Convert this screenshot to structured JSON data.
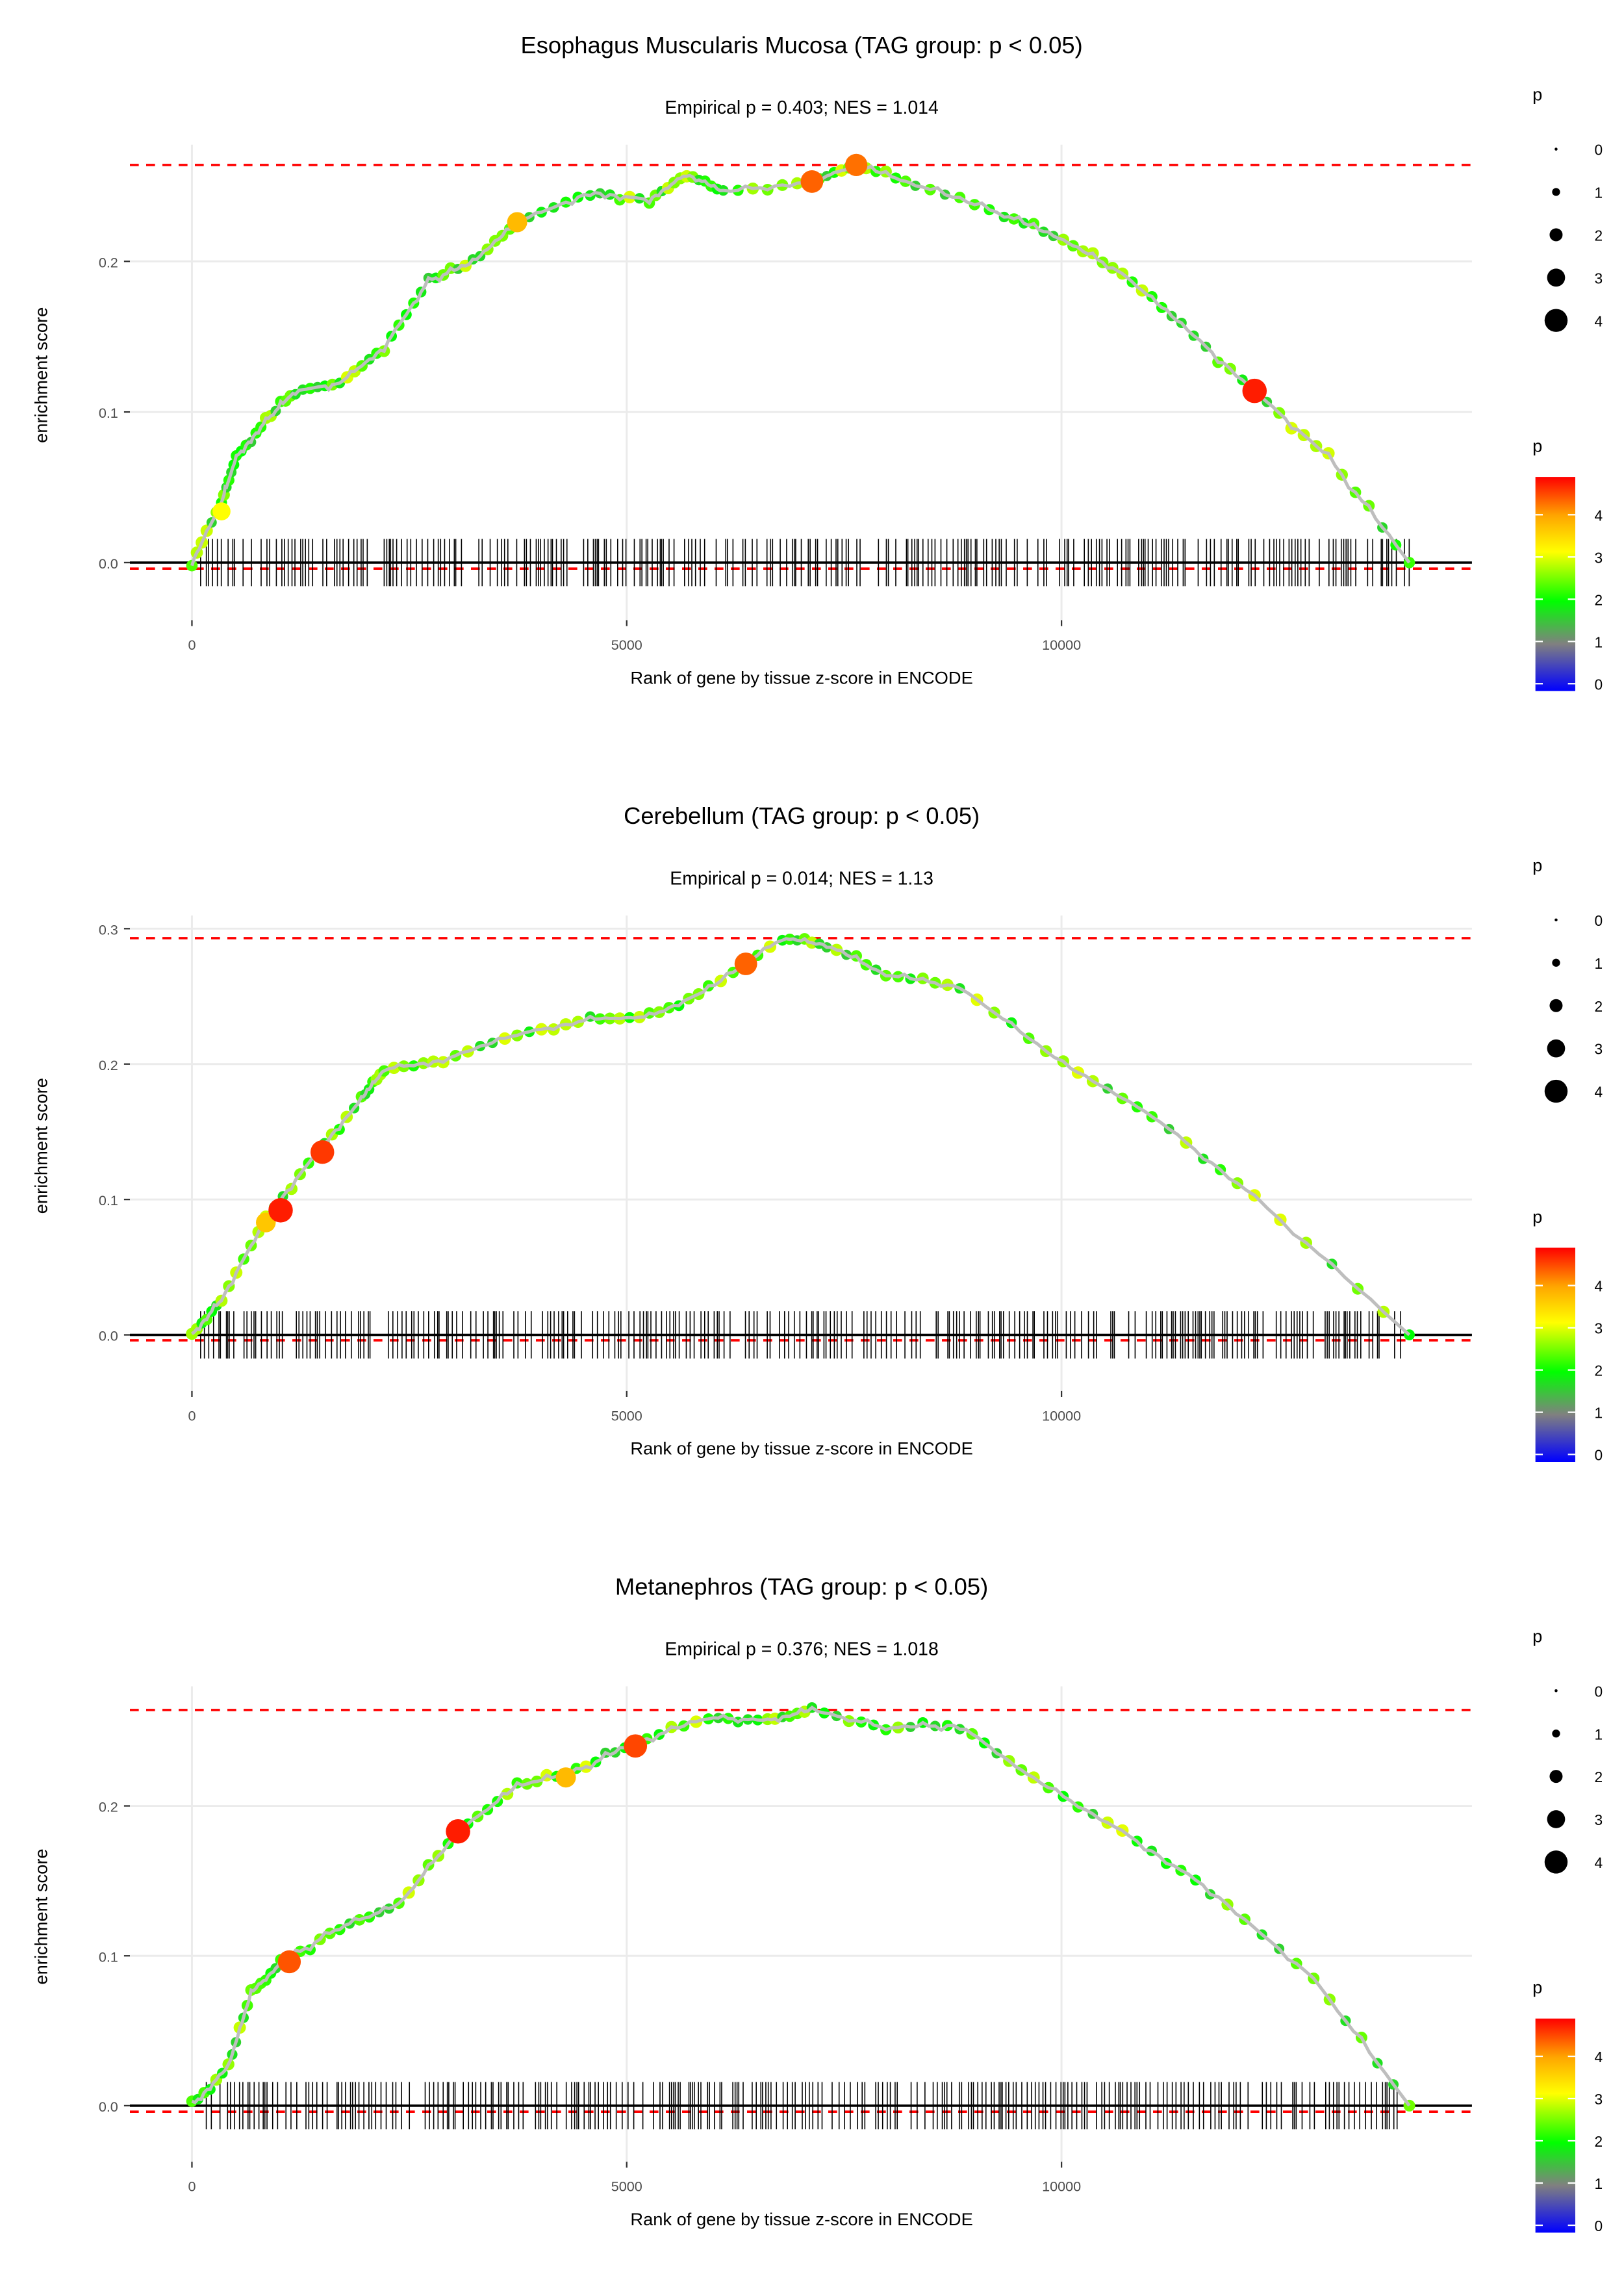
{
  "chart_data": [
    {
      "type": "line",
      "title": "Esophagus Muscularis Mucosa (TAG group: p < 0.05)",
      "subtitle": "Empirical p = 0.403; NES = 1.014",
      "xlabel": "Rank of gene by tissue z-score in ENCODE",
      "ylabel": "enrichment score",
      "xlim": [
        -1000,
        14700
      ],
      "ylim": [
        -0.03,
        0.28
      ],
      "xticks": [
        0,
        5000,
        10000
      ],
      "xtick_labels": [
        "0",
        "5000",
        "10000"
      ],
      "yticks": [
        0,
        0.1,
        0.2
      ],
      "ytick_labels": [
        "0.0",
        "0.1",
        "0.2"
      ],
      "max_es": 0.264,
      "min_es": -0.004,
      "x": [
        0,
        340,
        510,
        850,
        1190,
        1700,
        2210,
        2720,
        3230,
        3740,
        4580,
        5260,
        5690,
        6110,
        7130,
        7640,
        8320,
        9340,
        10020,
        10700,
        11380,
        12220,
        13070,
        14000
      ],
      "y": [
        0,
        0.04,
        0.07,
        0.094,
        0.114,
        0.119,
        0.143,
        0.187,
        0.199,
        0.226,
        0.246,
        0.241,
        0.258,
        0.246,
        0.253,
        0.264,
        0.251,
        0.231,
        0.214,
        0.192,
        0.158,
        0.114,
        0.07,
        0
      ],
      "highlights": [
        {
          "x": 3740,
          "y": 0.226,
          "p": 3.6
        },
        {
          "x": 7130,
          "y": 0.253,
          "p": 4.3
        },
        {
          "x": 7640,
          "y": 0.264,
          "p": 4.2
        },
        {
          "x": 12220,
          "y": 0.114,
          "p": 4.8
        },
        {
          "x": 340,
          "y": 0.034,
          "p": 3
        }
      ]
    },
    {
      "type": "line",
      "title": "Cerebellum (TAG group: p < 0.05)",
      "subtitle": "Empirical p = 0.014; NES = 1.13",
      "xlabel": "Rank of gene by tissue z-score in ENCODE",
      "ylabel": "enrichment score",
      "xlim": [
        -1000,
        14700
      ],
      "ylim": [
        -0.03,
        0.31
      ],
      "xticks": [
        0,
        5000,
        10000
      ],
      "xtick_labels": [
        "0",
        "5000",
        "10000"
      ],
      "yticks": [
        0,
        0.1,
        0.2,
        0.3
      ],
      "ytick_labels": [
        "0.0",
        "0.1",
        "0.2",
        "0.3"
      ],
      "max_es": 0.293,
      "min_es": -0.004,
      "x": [
        0,
        340,
        850,
        1440,
        1950,
        2210,
        2890,
        3740,
        4580,
        5260,
        5940,
        6790,
        7300,
        7980,
        8830,
        10020,
        11040,
        12220,
        14000
      ],
      "y": [
        0,
        0.026,
        0.086,
        0.135,
        0.174,
        0.196,
        0.203,
        0.222,
        0.233,
        0.235,
        0.255,
        0.293,
        0.288,
        0.266,
        0.257,
        0.2,
        0.162,
        0.102,
        0
      ],
      "highlights": [
        {
          "x": 850,
          "y": 0.083,
          "p": 3.5
        },
        {
          "x": 1020,
          "y": 0.092,
          "p": 4.8
        },
        {
          "x": 1500,
          "y": 0.135,
          "p": 4.6
        },
        {
          "x": 6370,
          "y": 0.274,
          "p": 4.3
        }
      ]
    },
    {
      "type": "line",
      "title": "Metanephros (TAG group: p < 0.05)",
      "subtitle": "Empirical p = 0.376; NES = 1.018",
      "xlabel": "Rank of gene by tissue z-score in ENCODE",
      "ylabel": "enrichment score",
      "xlim": [
        -1000,
        14700
      ],
      "ylim": [
        -0.03,
        0.28
      ],
      "xticks": [
        0,
        5000,
        10000
      ],
      "xtick_labels": [
        "0",
        "5000",
        "10000"
      ],
      "yticks": [
        0,
        0.1,
        0.2
      ],
      "ytick_labels": [
        "0.0",
        "0.1",
        "0.2"
      ],
      "max_es": 0.264,
      "min_es": -0.004,
      "x": [
        0,
        420,
        680,
        1020,
        1700,
        2380,
        3060,
        3740,
        4420,
        5090,
        5940,
        6620,
        7130,
        7980,
        8830,
        9680,
        10700,
        11710,
        12900,
        14000
      ],
      "y": [
        0,
        0.026,
        0.075,
        0.095,
        0.119,
        0.134,
        0.183,
        0.213,
        0.223,
        0.242,
        0.259,
        0.257,
        0.264,
        0.252,
        0.254,
        0.218,
        0.183,
        0.144,
        0.085,
        0
      ],
      "highlights": [
        {
          "x": 1120,
          "y": 0.096,
          "p": 4.4
        },
        {
          "x": 3060,
          "y": 0.183,
          "p": 4.8
        },
        {
          "x": 4300,
          "y": 0.219,
          "p": 3.6
        },
        {
          "x": 5100,
          "y": 0.24,
          "p": 4.5
        }
      ]
    }
  ],
  "legend": {
    "size_title": "p",
    "size_labels": [
      "0",
      "1",
      "2",
      "3",
      "4"
    ],
    "color_title": "p",
    "color_labels": [
      "0",
      "1",
      "2",
      "3",
      "4"
    ],
    "colors": [
      "#0000ff",
      "#808080",
      "#00ff00",
      "#ffff00",
      "#ffa500",
      "#ff0000"
    ]
  },
  "colors": {
    "max_line": "#ff0000",
    "curve": "#bebebe"
  }
}
